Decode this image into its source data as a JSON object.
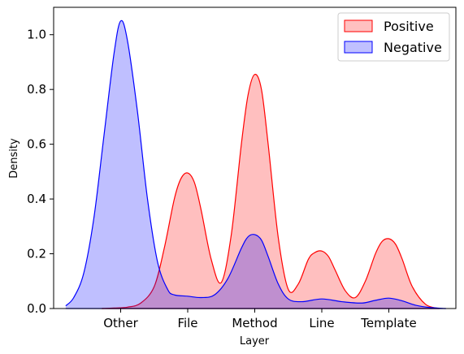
{
  "chart_data": {
    "type": "area",
    "xlabel": "Layer",
    "ylabel": "Density",
    "categories": [
      "Other",
      "File",
      "Method",
      "Line",
      "Template"
    ],
    "x_positions": [
      0,
      1,
      2,
      3,
      4
    ],
    "xlim": [
      -1.0,
      5.0
    ],
    "ylim": [
      0,
      1.1
    ],
    "yticks": [
      0.0,
      0.2,
      0.4,
      0.6,
      0.8,
      1.0
    ],
    "ytick_labels": [
      "0.0",
      "0.2",
      "0.4",
      "0.6",
      "0.8",
      "1.0"
    ],
    "legend_position": "top-right",
    "grid": false,
    "series": [
      {
        "name": "Positive",
        "stroke": "#ff0000",
        "fill": "#ff0000",
        "fill_opacity": 0.25,
        "x": [
          -0.28,
          -0.1,
          0.1,
          0.3,
          0.5,
          0.65,
          0.8,
          0.9,
          1.0,
          1.1,
          1.2,
          1.35,
          1.5,
          1.65,
          1.8,
          1.9,
          2.0,
          2.1,
          2.2,
          2.35,
          2.5,
          2.65,
          2.8,
          2.9,
          3.0,
          3.1,
          3.2,
          3.35,
          3.5,
          3.65,
          3.8,
          3.9,
          4.0,
          4.1,
          4.2,
          4.35,
          4.55,
          4.75
        ],
        "y": [
          0.0,
          0.002,
          0.005,
          0.02,
          0.08,
          0.22,
          0.4,
          0.475,
          0.495,
          0.46,
          0.36,
          0.18,
          0.095,
          0.27,
          0.6,
          0.78,
          0.855,
          0.8,
          0.6,
          0.26,
          0.07,
          0.09,
          0.18,
          0.205,
          0.21,
          0.19,
          0.14,
          0.065,
          0.04,
          0.1,
          0.2,
          0.245,
          0.255,
          0.235,
          0.18,
          0.08,
          0.015,
          0.0
        ]
      },
      {
        "name": "Negative",
        "stroke": "#0000ff",
        "fill": "#0000ff",
        "fill_opacity": 0.25,
        "x": [
          -0.82,
          -0.7,
          -0.55,
          -0.4,
          -0.25,
          -0.1,
          0.0,
          0.1,
          0.25,
          0.4,
          0.55,
          0.7,
          0.8,
          1.0,
          1.2,
          1.4,
          1.6,
          1.8,
          1.9,
          2.0,
          2.1,
          2.2,
          2.35,
          2.5,
          2.7,
          3.0,
          3.3,
          3.6,
          3.8,
          4.0,
          4.2,
          4.4,
          4.6,
          4.85
        ],
        "y": [
          0.01,
          0.04,
          0.13,
          0.33,
          0.63,
          0.93,
          1.05,
          0.98,
          0.72,
          0.4,
          0.17,
          0.07,
          0.05,
          0.045,
          0.04,
          0.05,
          0.11,
          0.22,
          0.262,
          0.27,
          0.25,
          0.19,
          0.09,
          0.035,
          0.025,
          0.035,
          0.025,
          0.02,
          0.03,
          0.038,
          0.028,
          0.012,
          0.004,
          0.0
        ]
      }
    ]
  }
}
